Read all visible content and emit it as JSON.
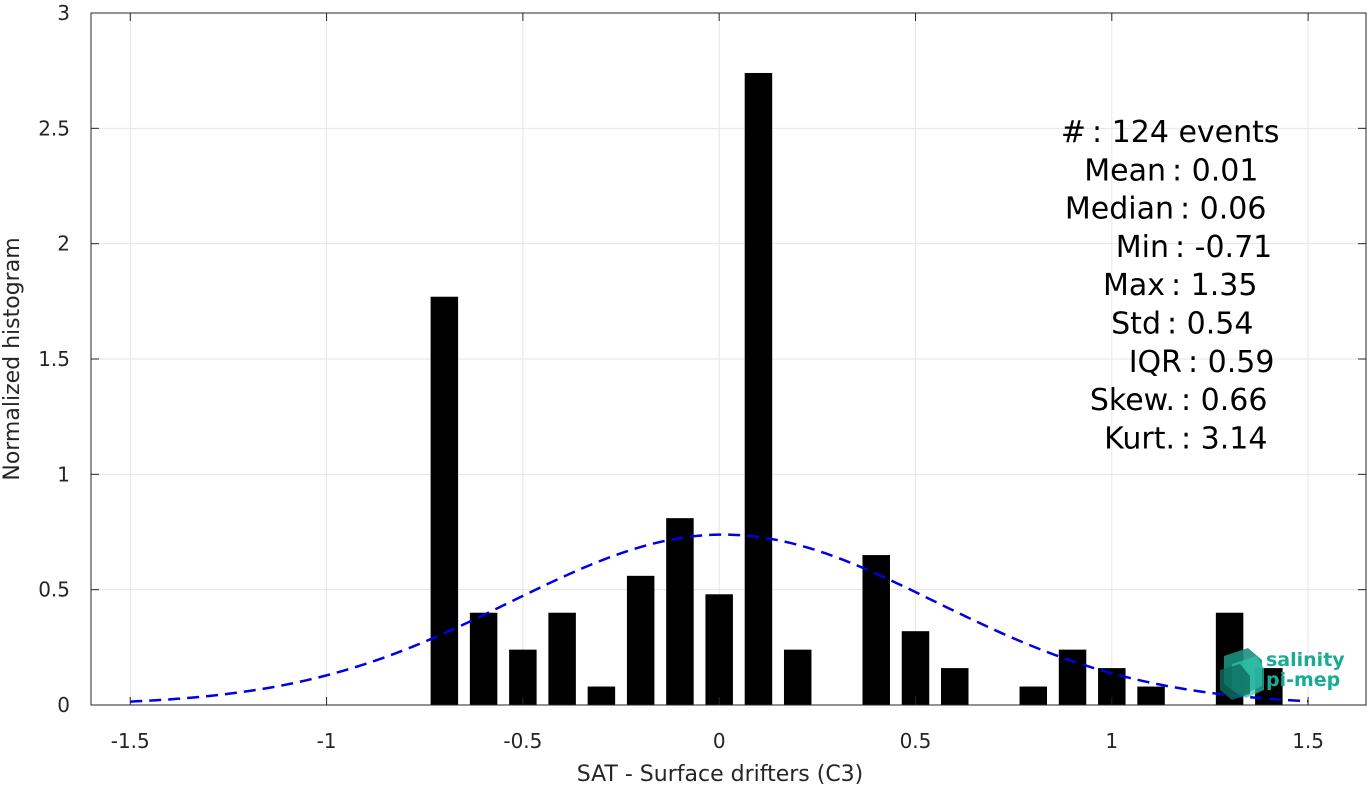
{
  "chart_data": {
    "type": "bar",
    "xlabel": "SAT - Surface drifters (C3)",
    "ylabel": "Normalized histogram",
    "xlim": [
      -1.6,
      1.65
    ],
    "ylim": [
      0,
      3
    ],
    "xticks": [
      "-1.5",
      "-1",
      "-0.5",
      "0",
      "0.5",
      "1",
      "1.5"
    ],
    "yticks": [
      "0",
      "0.5",
      "1",
      "1.5",
      "2",
      "2.5",
      "3"
    ],
    "grid": true,
    "bin_width": 0.1,
    "bar_width": 0.07,
    "bars": [
      {
        "x": -0.7,
        "value": 1.77
      },
      {
        "x": -0.6,
        "value": 0.4
      },
      {
        "x": -0.5,
        "value": 0.24
      },
      {
        "x": -0.4,
        "value": 0.4
      },
      {
        "x": -0.3,
        "value": 0.08
      },
      {
        "x": -0.2,
        "value": 0.56
      },
      {
        "x": -0.1,
        "value": 0.81
      },
      {
        "x": 0.0,
        "value": 0.48
      },
      {
        "x": 0.1,
        "value": 2.74
      },
      {
        "x": 0.2,
        "value": 0.24
      },
      {
        "x": 0.4,
        "value": 0.65
      },
      {
        "x": 0.5,
        "value": 0.32
      },
      {
        "x": 0.6,
        "value": 0.16
      },
      {
        "x": 0.8,
        "value": 0.08
      },
      {
        "x": 0.9,
        "value": 0.24
      },
      {
        "x": 1.0,
        "value": 0.16
      },
      {
        "x": 1.1,
        "value": 0.08
      },
      {
        "x": 1.3,
        "value": 0.4
      },
      {
        "x": 1.4,
        "value": 0.16
      }
    ],
    "fit": {
      "type": "gaussian",
      "mean": 0.01,
      "std": 0.54,
      "x_range": [
        -1.5,
        1.5
      ],
      "style": "dashed",
      "color": "#0000e6"
    },
    "bar_color": "#000000",
    "stats": [
      "#  : 124 events",
      "Mean : 0.01",
      "Median : 0.06",
      "Min : -0.71",
      "Max : 1.35",
      "Std : 0.54",
      "IQR : 0.59",
      "Skew. : 0.66",
      "Kurt. : 3.14"
    ]
  },
  "logo": {
    "line1": "salinity",
    "line2": "pi-mep",
    "color": "#1aab96"
  }
}
